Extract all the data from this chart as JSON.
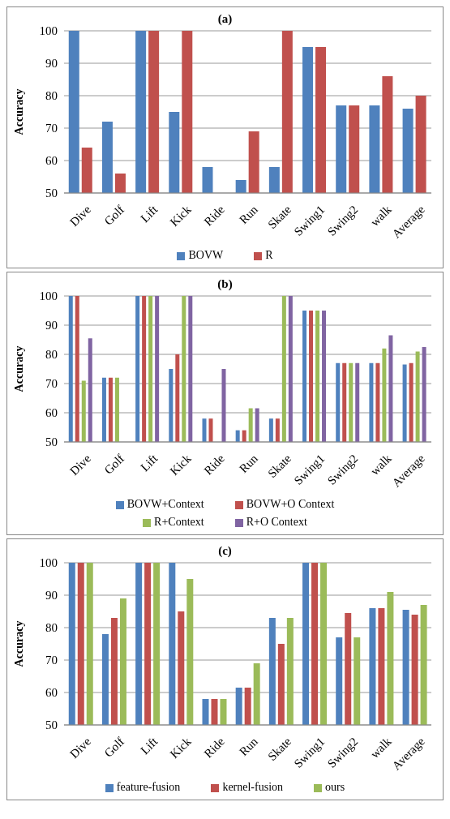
{
  "chart_data": [
    {
      "type": "bar",
      "title": "(a)",
      "ylabel": "Accuracy",
      "categories": [
        "Dive",
        "Golf",
        "Lift",
        "Kick",
        "Ride",
        "Run",
        "Skate",
        "Swing1",
        "Swing2",
        "walk",
        "Average"
      ],
      "ylim": [
        50,
        100
      ],
      "yticks": [
        50,
        60,
        70,
        80,
        90,
        100
      ],
      "grid": "y",
      "legend": "bottom",
      "series": [
        {
          "name": "BOVW",
          "color": "#4f81bd",
          "values": [
            100,
            72,
            100,
            75,
            58,
            54,
            58,
            95,
            77,
            77,
            76
          ]
        },
        {
          "name": "R",
          "color": "#c0504d",
          "values": [
            64,
            56,
            100,
            100,
            50,
            69,
            100,
            95,
            77,
            86,
            80
          ]
        }
      ]
    },
    {
      "type": "bar",
      "title": "(b)",
      "ylabel": "Accuracy",
      "categories": [
        "Dive",
        "Golf",
        "Lift",
        "Kick",
        "Ride",
        "Run",
        "Skate",
        "Swing1",
        "Swing2",
        "walk",
        "Average"
      ],
      "ylim": [
        50,
        100
      ],
      "yticks": [
        50,
        60,
        70,
        80,
        90,
        100
      ],
      "grid": "y",
      "legend": "bottom",
      "series": [
        {
          "name": "BOVW+Context",
          "color": "#4f81bd",
          "values": [
            100,
            72,
            100,
            75,
            58,
            54,
            58,
            95,
            77,
            77,
            76.5
          ]
        },
        {
          "name": "BOVW+O Context",
          "color": "#c0504d",
          "values": [
            100,
            72,
            100,
            80,
            58,
            54,
            58,
            95,
            77,
            77,
            77
          ]
        },
        {
          "name": "R+Context",
          "color": "#9bbb59",
          "values": [
            71,
            72,
            100,
            100,
            50,
            61.5,
            100,
            95,
            77,
            82,
            81
          ]
        },
        {
          "name": "R+O Context",
          "color": "#8064a2",
          "values": [
            85.5,
            50,
            100,
            100,
            75,
            61.5,
            100,
            95,
            77,
            86.5,
            82.5
          ]
        }
      ]
    },
    {
      "type": "bar",
      "title": "(c)",
      "ylabel": "Accuracy",
      "categories": [
        "Dive",
        "Golf",
        "Lift",
        "Kick",
        "Ride",
        "Run",
        "Skate",
        "Swing1",
        "Swing2",
        "walk",
        "Average"
      ],
      "ylim": [
        50,
        100
      ],
      "yticks": [
        50,
        60,
        70,
        80,
        90,
        100
      ],
      "grid": "y",
      "legend": "bottom",
      "series": [
        {
          "name": "feature-fusion",
          "color": "#4f81bd",
          "values": [
            100,
            78,
            100,
            100,
            58,
            61.5,
            83,
            100,
            77,
            86,
            85.5
          ]
        },
        {
          "name": "kernel-fusion",
          "color": "#c0504d",
          "values": [
            100,
            83,
            100,
            85,
            58,
            61.5,
            75,
            100,
            84.5,
            86,
            84
          ]
        },
        {
          "name": "ours",
          "color": "#9bbb59",
          "values": [
            100,
            89,
            100,
            95,
            58,
            69,
            83,
            100,
            77,
            91,
            87
          ]
        }
      ]
    }
  ]
}
